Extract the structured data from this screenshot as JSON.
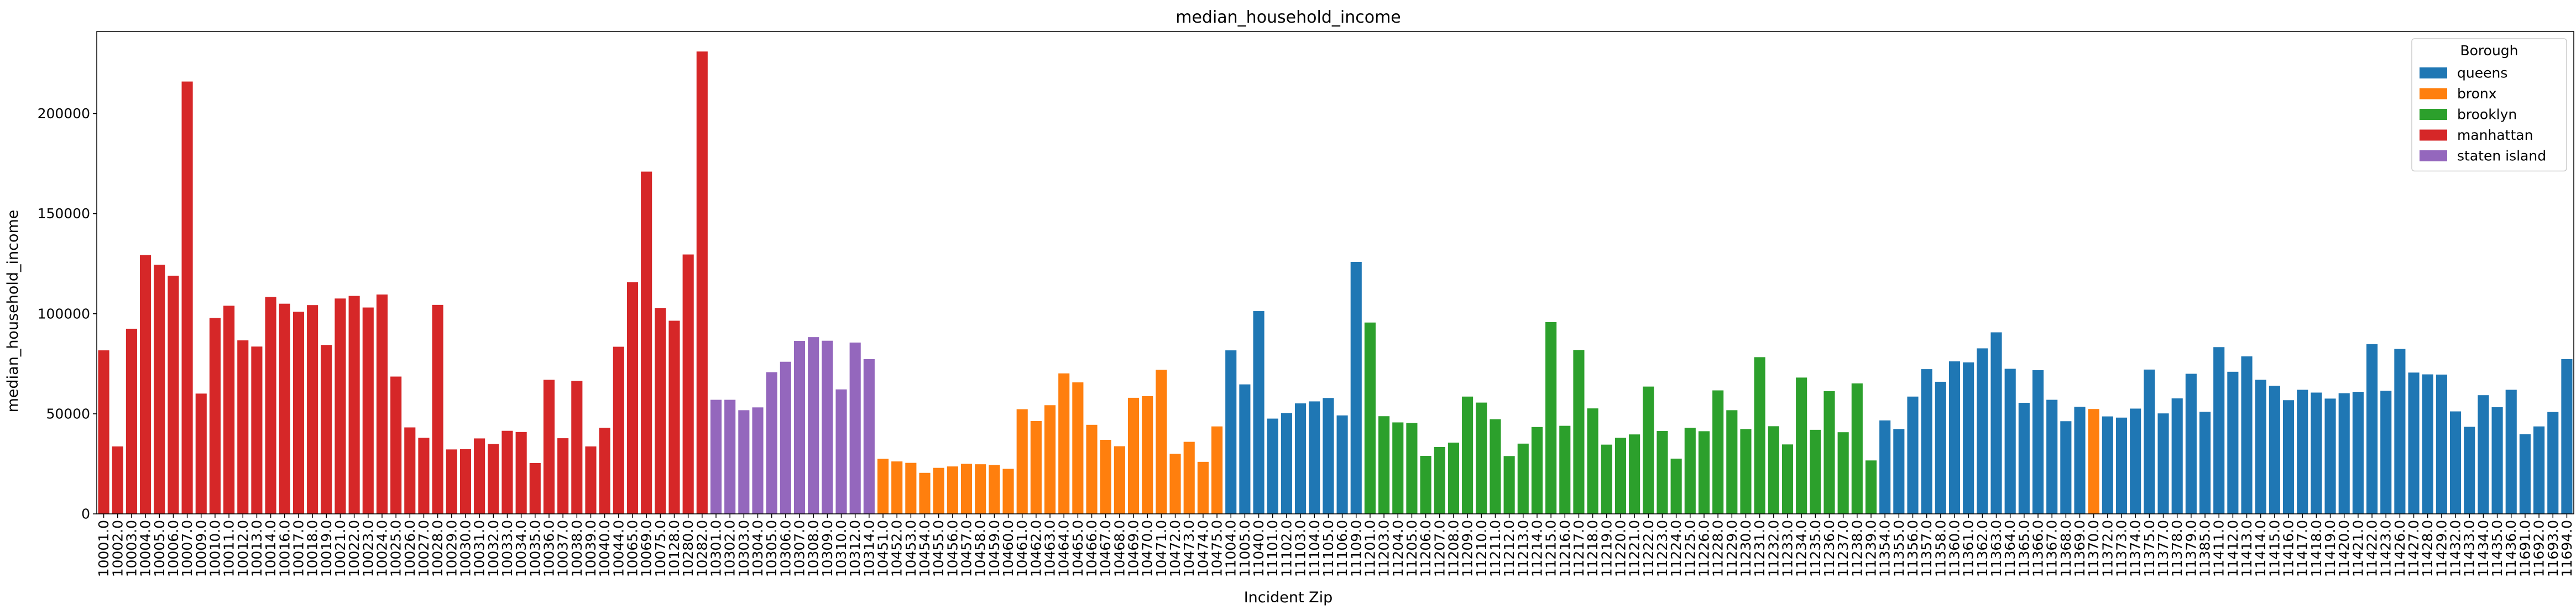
{
  "chart_data": {
    "type": "bar",
    "title": "median_household_income",
    "xlabel": "Incident Zip",
    "ylabel": "median_household_income",
    "ylim": [
      0,
      241000
    ],
    "yticks": [
      0,
      50000,
      100000,
      150000,
      200000
    ],
    "grid": false,
    "legend": {
      "title": "Borough",
      "placement": "top-right",
      "entries": [
        {
          "name": "queens",
          "color": "#1f77b4"
        },
        {
          "name": "bronx",
          "color": "#ff7f0e"
        },
        {
          "name": "brooklyn",
          "color": "#2ca02c"
        },
        {
          "name": "manhattan",
          "color": "#d62728"
        },
        {
          "name": "staten island",
          "color": "#9467bd"
        }
      ]
    },
    "bars": [
      {
        "zip": "10001.0",
        "value": 81700,
        "borough": "manhattan"
      },
      {
        "zip": "10002.0",
        "value": 33700,
        "borough": "manhattan"
      },
      {
        "zip": "10003.0",
        "value": 92500,
        "borough": "manhattan"
      },
      {
        "zip": "10004.0",
        "value": 129300,
        "borough": "manhattan"
      },
      {
        "zip": "10005.0",
        "value": 124500,
        "borough": "manhattan"
      },
      {
        "zip": "10006.0",
        "value": 119000,
        "borough": "manhattan"
      },
      {
        "zip": "10007.0",
        "value": 216000,
        "borough": "manhattan"
      },
      {
        "zip": "10009.0",
        "value": 60100,
        "borough": "manhattan"
      },
      {
        "zip": "10010.0",
        "value": 97900,
        "borough": "manhattan"
      },
      {
        "zip": "10011.0",
        "value": 104000,
        "borough": "manhattan"
      },
      {
        "zip": "10012.0",
        "value": 86700,
        "borough": "manhattan"
      },
      {
        "zip": "10013.0",
        "value": 83600,
        "borough": "manhattan"
      },
      {
        "zip": "10014.0",
        "value": 108400,
        "borough": "manhattan"
      },
      {
        "zip": "10016.0",
        "value": 105000,
        "borough": "manhattan"
      },
      {
        "zip": "10017.0",
        "value": 101000,
        "borough": "manhattan"
      },
      {
        "zip": "10018.0",
        "value": 104300,
        "borough": "manhattan"
      },
      {
        "zip": "10019.0",
        "value": 84400,
        "borough": "manhattan"
      },
      {
        "zip": "10021.0",
        "value": 107600,
        "borough": "manhattan"
      },
      {
        "zip": "10022.0",
        "value": 108900,
        "borough": "manhattan"
      },
      {
        "zip": "10023.0",
        "value": 103100,
        "borough": "manhattan"
      },
      {
        "zip": "10024.0",
        "value": 109600,
        "borough": "manhattan"
      },
      {
        "zip": "10025.0",
        "value": 68600,
        "borough": "manhattan"
      },
      {
        "zip": "10026.0",
        "value": 43200,
        "borough": "manhattan"
      },
      {
        "zip": "10027.0",
        "value": 38000,
        "borough": "manhattan"
      },
      {
        "zip": "10028.0",
        "value": 104400,
        "borough": "manhattan"
      },
      {
        "zip": "10029.0",
        "value": 32200,
        "borough": "manhattan"
      },
      {
        "zip": "10030.0",
        "value": 32300,
        "borough": "manhattan"
      },
      {
        "zip": "10031.0",
        "value": 37700,
        "borough": "manhattan"
      },
      {
        "zip": "10032.0",
        "value": 34900,
        "borough": "manhattan"
      },
      {
        "zip": "10033.0",
        "value": 41500,
        "borough": "manhattan"
      },
      {
        "zip": "10034.0",
        "value": 40900,
        "borough": "manhattan"
      },
      {
        "zip": "10035.0",
        "value": 25400,
        "borough": "manhattan"
      },
      {
        "zip": "10036.0",
        "value": 67000,
        "borough": "manhattan"
      },
      {
        "zip": "10037.0",
        "value": 37800,
        "borough": "manhattan"
      },
      {
        "zip": "10038.0",
        "value": 66500,
        "borough": "manhattan"
      },
      {
        "zip": "10039.0",
        "value": 33700,
        "borough": "manhattan"
      },
      {
        "zip": "10040.0",
        "value": 43000,
        "borough": "manhattan"
      },
      {
        "zip": "10044.0",
        "value": 83500,
        "borough": "manhattan"
      },
      {
        "zip": "10065.0",
        "value": 115800,
        "borough": "manhattan"
      },
      {
        "zip": "10069.0",
        "value": 171000,
        "borough": "manhattan"
      },
      {
        "zip": "10075.0",
        "value": 102900,
        "borough": "manhattan"
      },
      {
        "zip": "10128.0",
        "value": 96500,
        "borough": "manhattan"
      },
      {
        "zip": "10280.0",
        "value": 129600,
        "borough": "manhattan"
      },
      {
        "zip": "10282.0",
        "value": 231000,
        "borough": "manhattan"
      },
      {
        "zip": "10301.0",
        "value": 57000,
        "borough": "staten island"
      },
      {
        "zip": "10302.0",
        "value": 57000,
        "borough": "staten island"
      },
      {
        "zip": "10303.0",
        "value": 51800,
        "borough": "staten island"
      },
      {
        "zip": "10304.0",
        "value": 53200,
        "borough": "staten island"
      },
      {
        "zip": "10305.0",
        "value": 70800,
        "borough": "staten island"
      },
      {
        "zip": "10306.0",
        "value": 76000,
        "borough": "staten island"
      },
      {
        "zip": "10307.0",
        "value": 86400,
        "borough": "staten island"
      },
      {
        "zip": "10308.0",
        "value": 88300,
        "borough": "staten island"
      },
      {
        "zip": "10309.0",
        "value": 86500,
        "borough": "staten island"
      },
      {
        "zip": "10310.0",
        "value": 62200,
        "borough": "staten island"
      },
      {
        "zip": "10312.0",
        "value": 85600,
        "borough": "staten island"
      },
      {
        "zip": "10314.0",
        "value": 77300,
        "borough": "staten island"
      },
      {
        "zip": "10451.0",
        "value": 27500,
        "borough": "bronx"
      },
      {
        "zip": "10452.0",
        "value": 26200,
        "borough": "bronx"
      },
      {
        "zip": "10453.0",
        "value": 25500,
        "borough": "bronx"
      },
      {
        "zip": "10454.0",
        "value": 20500,
        "borough": "bronx"
      },
      {
        "zip": "10455.0",
        "value": 23000,
        "borough": "bronx"
      },
      {
        "zip": "10456.0",
        "value": 23700,
        "borough": "bronx"
      },
      {
        "zip": "10457.0",
        "value": 25000,
        "borough": "bronx"
      },
      {
        "zip": "10458.0",
        "value": 24800,
        "borough": "bronx"
      },
      {
        "zip": "10459.0",
        "value": 24400,
        "borough": "bronx"
      },
      {
        "zip": "10460.0",
        "value": 22500,
        "borough": "bronx"
      },
      {
        "zip": "10461.0",
        "value": 52300,
        "borough": "bronx"
      },
      {
        "zip": "10462.0",
        "value": 46400,
        "borough": "bronx"
      },
      {
        "zip": "10463.0",
        "value": 54300,
        "borough": "bronx"
      },
      {
        "zip": "10464.0",
        "value": 70200,
        "borough": "bronx"
      },
      {
        "zip": "10465.0",
        "value": 65700,
        "borough": "bronx"
      },
      {
        "zip": "10466.0",
        "value": 44500,
        "borough": "bronx"
      },
      {
        "zip": "10467.0",
        "value": 37000,
        "borough": "bronx"
      },
      {
        "zip": "10468.0",
        "value": 33800,
        "borough": "bronx"
      },
      {
        "zip": "10469.0",
        "value": 58000,
        "borough": "bronx"
      },
      {
        "zip": "10470.0",
        "value": 58800,
        "borough": "bronx"
      },
      {
        "zip": "10471.0",
        "value": 72000,
        "borough": "bronx"
      },
      {
        "zip": "10472.0",
        "value": 30000,
        "borough": "bronx"
      },
      {
        "zip": "10473.0",
        "value": 36000,
        "borough": "bronx"
      },
      {
        "zip": "10474.0",
        "value": 26000,
        "borough": "bronx"
      },
      {
        "zip": "10475.0",
        "value": 43700,
        "borough": "bronx"
      },
      {
        "zip": "11004.0",
        "value": 81700,
        "borough": "queens"
      },
      {
        "zip": "11005.0",
        "value": 64700,
        "borough": "queens"
      },
      {
        "zip": "11040.0",
        "value": 101300,
        "borough": "queens"
      },
      {
        "zip": "11101.0",
        "value": 47600,
        "borough": "queens"
      },
      {
        "zip": "11102.0",
        "value": 50400,
        "borough": "queens"
      },
      {
        "zip": "11103.0",
        "value": 55200,
        "borough": "queens"
      },
      {
        "zip": "11104.0",
        "value": 56200,
        "borough": "queens"
      },
      {
        "zip": "11105.0",
        "value": 57900,
        "borough": "queens"
      },
      {
        "zip": "11106.0",
        "value": 49200,
        "borough": "queens"
      },
      {
        "zip": "11109.0",
        "value": 125900,
        "borough": "queens"
      },
      {
        "zip": "11201.0",
        "value": 95600,
        "borough": "brooklyn"
      },
      {
        "zip": "11203.0",
        "value": 48800,
        "borough": "brooklyn"
      },
      {
        "zip": "11204.0",
        "value": 45700,
        "borough": "brooklyn"
      },
      {
        "zip": "11205.0",
        "value": 45400,
        "borough": "brooklyn"
      },
      {
        "zip": "11206.0",
        "value": 29000,
        "borough": "brooklyn"
      },
      {
        "zip": "11207.0",
        "value": 33400,
        "borough": "brooklyn"
      },
      {
        "zip": "11208.0",
        "value": 35600,
        "borough": "brooklyn"
      },
      {
        "zip": "11209.0",
        "value": 58600,
        "borough": "brooklyn"
      },
      {
        "zip": "11210.0",
        "value": 55600,
        "borough": "brooklyn"
      },
      {
        "zip": "11211.0",
        "value": 47300,
        "borough": "brooklyn"
      },
      {
        "zip": "11212.0",
        "value": 28900,
        "borough": "brooklyn"
      },
      {
        "zip": "11213.0",
        "value": 35100,
        "borough": "brooklyn"
      },
      {
        "zip": "11214.0",
        "value": 43400,
        "borough": "brooklyn"
      },
      {
        "zip": "11215.0",
        "value": 95800,
        "borough": "brooklyn"
      },
      {
        "zip": "11216.0",
        "value": 44000,
        "borough": "brooklyn"
      },
      {
        "zip": "11217.0",
        "value": 81900,
        "borough": "brooklyn"
      },
      {
        "zip": "11218.0",
        "value": 52700,
        "borough": "brooklyn"
      },
      {
        "zip": "11219.0",
        "value": 34600,
        "borough": "brooklyn"
      },
      {
        "zip": "11220.0",
        "value": 38000,
        "borough": "brooklyn"
      },
      {
        "zip": "11221.0",
        "value": 39700,
        "borough": "brooklyn"
      },
      {
        "zip": "11222.0",
        "value": 63600,
        "borough": "brooklyn"
      },
      {
        "zip": "11223.0",
        "value": 41400,
        "borough": "brooklyn"
      },
      {
        "zip": "11224.0",
        "value": 27600,
        "borough": "brooklyn"
      },
      {
        "zip": "11225.0",
        "value": 43000,
        "borough": "brooklyn"
      },
      {
        "zip": "11226.0",
        "value": 41300,
        "borough": "brooklyn"
      },
      {
        "zip": "11228.0",
        "value": 61700,
        "borough": "brooklyn"
      },
      {
        "zip": "11229.0",
        "value": 51800,
        "borough": "brooklyn"
      },
      {
        "zip": "11230.0",
        "value": 42400,
        "borough": "brooklyn"
      },
      {
        "zip": "11231.0",
        "value": 78300,
        "borough": "brooklyn"
      },
      {
        "zip": "11232.0",
        "value": 43800,
        "borough": "brooklyn"
      },
      {
        "zip": "11233.0",
        "value": 34700,
        "borough": "brooklyn"
      },
      {
        "zip": "11234.0",
        "value": 68100,
        "borough": "brooklyn"
      },
      {
        "zip": "11235.0",
        "value": 42000,
        "borough": "brooklyn"
      },
      {
        "zip": "11236.0",
        "value": 61300,
        "borough": "brooklyn"
      },
      {
        "zip": "11237.0",
        "value": 40800,
        "borough": "brooklyn"
      },
      {
        "zip": "11238.0",
        "value": 65200,
        "borough": "brooklyn"
      },
      {
        "zip": "11239.0",
        "value": 26700,
        "borough": "brooklyn"
      },
      {
        "zip": "11354.0",
        "value": 46700,
        "borough": "queens"
      },
      {
        "zip": "11355.0",
        "value": 42400,
        "borough": "queens"
      },
      {
        "zip": "11356.0",
        "value": 58600,
        "borough": "queens"
      },
      {
        "zip": "11357.0",
        "value": 72300,
        "borough": "queens"
      },
      {
        "zip": "11358.0",
        "value": 66000,
        "borough": "queens"
      },
      {
        "zip": "11360.0",
        "value": 76200,
        "borough": "queens"
      },
      {
        "zip": "11361.0",
        "value": 75700,
        "borough": "queens"
      },
      {
        "zip": "11362.0",
        "value": 82700,
        "borough": "queens"
      },
      {
        "zip": "11363.0",
        "value": 90700,
        "borough": "queens"
      },
      {
        "zip": "11364.0",
        "value": 72500,
        "borough": "queens"
      },
      {
        "zip": "11365.0",
        "value": 55500,
        "borough": "queens"
      },
      {
        "zip": "11366.0",
        "value": 71800,
        "borough": "queens"
      },
      {
        "zip": "11367.0",
        "value": 57000,
        "borough": "queens"
      },
      {
        "zip": "11368.0",
        "value": 46300,
        "borough": "queens"
      },
      {
        "zip": "11369.0",
        "value": 53500,
        "borough": "queens"
      },
      {
        "zip": "11370.0",
        "value": 52400,
        "borough": "bronx"
      },
      {
        "zip": "11372.0",
        "value": 48700,
        "borough": "queens"
      },
      {
        "zip": "11373.0",
        "value": 48100,
        "borough": "queens"
      },
      {
        "zip": "11374.0",
        "value": 52600,
        "borough": "queens"
      },
      {
        "zip": "11375.0",
        "value": 72100,
        "borough": "queens"
      },
      {
        "zip": "11377.0",
        "value": 50200,
        "borough": "queens"
      },
      {
        "zip": "11378.0",
        "value": 57700,
        "borough": "queens"
      },
      {
        "zip": "11379.0",
        "value": 70000,
        "borough": "queens"
      },
      {
        "zip": "11385.0",
        "value": 51000,
        "borough": "queens"
      },
      {
        "zip": "11411.0",
        "value": 83300,
        "borough": "queens"
      },
      {
        "zip": "11412.0",
        "value": 71000,
        "borough": "queens"
      },
      {
        "zip": "11413.0",
        "value": 78700,
        "borough": "queens"
      },
      {
        "zip": "11414.0",
        "value": 67000,
        "borough": "queens"
      },
      {
        "zip": "11415.0",
        "value": 64000,
        "borough": "queens"
      },
      {
        "zip": "11416.0",
        "value": 56800,
        "borough": "queens"
      },
      {
        "zip": "11417.0",
        "value": 62000,
        "borough": "queens"
      },
      {
        "zip": "11418.0",
        "value": 60600,
        "borough": "queens"
      },
      {
        "zip": "11419.0",
        "value": 57600,
        "borough": "queens"
      },
      {
        "zip": "11420.0",
        "value": 60300,
        "borough": "queens"
      },
      {
        "zip": "11421.0",
        "value": 61000,
        "borough": "queens"
      },
      {
        "zip": "11422.0",
        "value": 84800,
        "borough": "queens"
      },
      {
        "zip": "11423.0",
        "value": 61500,
        "borough": "queens"
      },
      {
        "zip": "11426.0",
        "value": 82400,
        "borough": "queens"
      },
      {
        "zip": "11427.0",
        "value": 70600,
        "borough": "queens"
      },
      {
        "zip": "11428.0",
        "value": 69700,
        "borough": "queens"
      },
      {
        "zip": "11429.0",
        "value": 69600,
        "borough": "queens"
      },
      {
        "zip": "11432.0",
        "value": 51200,
        "borough": "queens"
      },
      {
        "zip": "11433.0",
        "value": 43500,
        "borough": "queens"
      },
      {
        "zip": "11434.0",
        "value": 59300,
        "borough": "queens"
      },
      {
        "zip": "11435.0",
        "value": 53300,
        "borough": "queens"
      },
      {
        "zip": "11436.0",
        "value": 62000,
        "borough": "queens"
      },
      {
        "zip": "11691.0",
        "value": 39800,
        "borough": "queens"
      },
      {
        "zip": "11692.0",
        "value": 43700,
        "borough": "queens"
      },
      {
        "zip": "11693.0",
        "value": 50900,
        "borough": "queens"
      },
      {
        "zip": "11694.0",
        "value": 77300,
        "borough": "queens"
      }
    ]
  }
}
